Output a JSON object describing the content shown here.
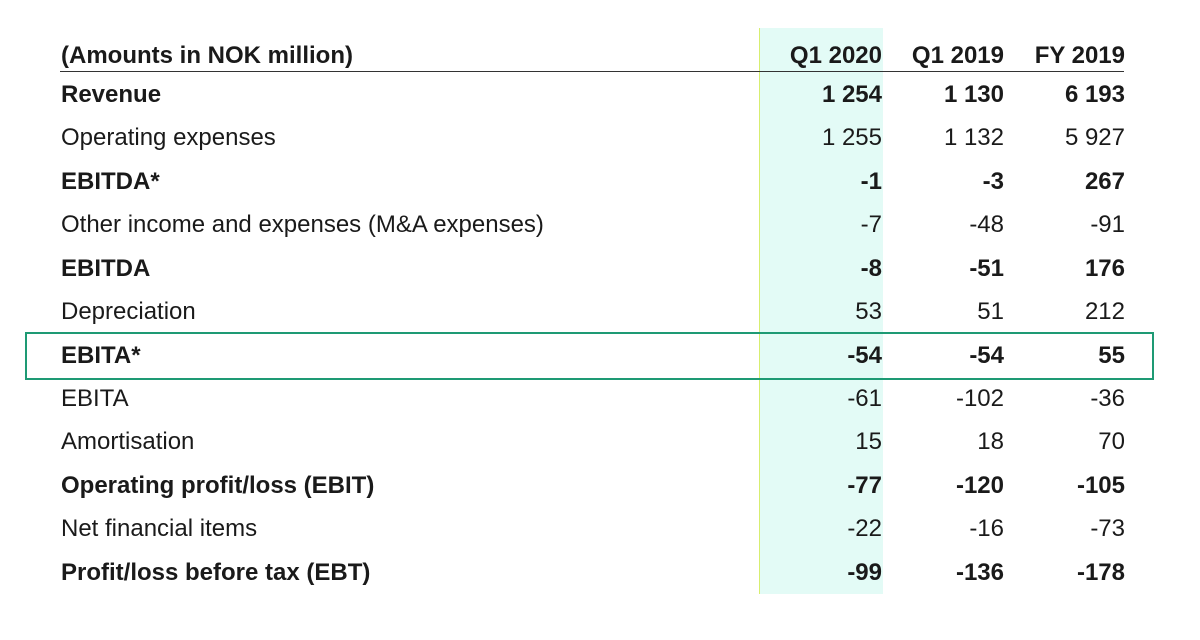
{
  "table": {
    "header": {
      "label": "(Amounts in NOK million)",
      "columns": [
        "Q1 2020",
        "Q1 2019",
        "FY 2019"
      ]
    },
    "highlight_color": "#e3fbf6",
    "box_color": "#1e9a74",
    "rows": [
      {
        "label": "Revenue",
        "bold": true,
        "values": [
          "1 254",
          "1 130",
          "6 193"
        ]
      },
      {
        "label": "Operating expenses",
        "bold": false,
        "values": [
          "1 255",
          "1 132",
          "5 927"
        ]
      },
      {
        "label": "EBITDA*",
        "bold": true,
        "values": [
          "-1",
          "-3",
          "267"
        ]
      },
      {
        "label": "Other income and expenses (M&A expenses)",
        "bold": false,
        "values": [
          "-7",
          "-48",
          "-91"
        ]
      },
      {
        "label": "EBITDA",
        "bold": true,
        "values": [
          "-8",
          "-51",
          "176"
        ]
      },
      {
        "label": "Depreciation",
        "bold": false,
        "values": [
          "53",
          "51",
          "212"
        ]
      },
      {
        "label": "EBITA*",
        "bold": true,
        "boxed": true,
        "values": [
          "-54",
          "-54",
          "55"
        ]
      },
      {
        "label": "EBITA",
        "bold": false,
        "values": [
          "-61",
          "-102",
          "-36"
        ]
      },
      {
        "label": "Amortisation",
        "bold": false,
        "values": [
          "15",
          "18",
          "70"
        ]
      },
      {
        "label": "Operating profit/loss (EBIT)",
        "bold": true,
        "values": [
          "-77",
          "-120",
          "-105"
        ]
      },
      {
        "label": "Net financial items",
        "bold": false,
        "values": [
          "-22",
          "-16",
          "-73"
        ]
      },
      {
        "label": "Profit/loss before tax (EBT)",
        "bold": true,
        "values": [
          "-99",
          "-136",
          "-178"
        ]
      }
    ]
  }
}
